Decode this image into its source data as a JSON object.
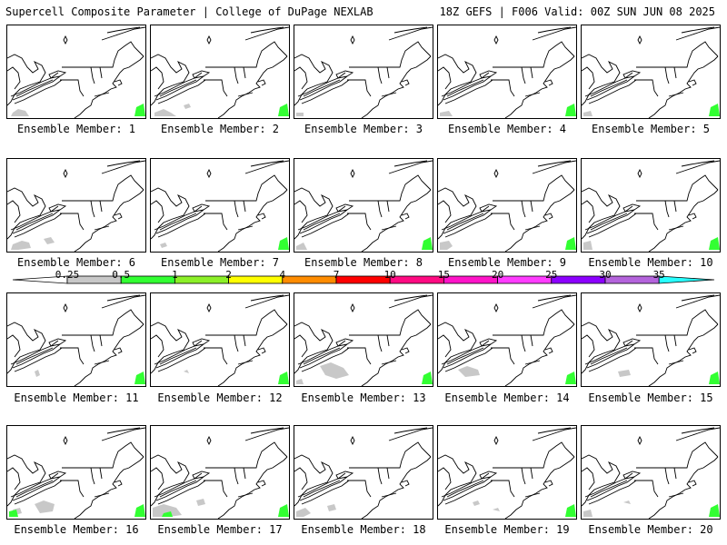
{
  "header": {
    "left_title": "Supercell Composite Parameter | College of DuPage NEXLAB",
    "right_title": "18Z GEFS | F006 Valid: 00Z SUN JUN 08 2025"
  },
  "legend": {
    "ticks": [
      "0.25",
      "0.5",
      "1",
      "2",
      "4",
      "7",
      "10",
      "15",
      "20",
      "25",
      "30",
      "35"
    ],
    "colors": [
      "#c8c8c8",
      "#32ff32",
      "#8cf028",
      "#ffff00",
      "#ff8c00",
      "#ff0000",
      "#ff0a82",
      "#ff14c8",
      "#ff3cff",
      "#8c00ff",
      "#b464dc",
      "#28ffff"
    ]
  },
  "members": [
    {
      "label": "Ensemble Member: 1"
    },
    {
      "label": "Ensemble Member: 2"
    },
    {
      "label": "Ensemble Member: 3"
    },
    {
      "label": "Ensemble Member: 4"
    },
    {
      "label": "Ensemble Member: 5"
    },
    {
      "label": "Ensemble Member: 6"
    },
    {
      "label": "Ensemble Member: 7"
    },
    {
      "label": "Ensemble Member: 8"
    },
    {
      "label": "Ensemble Member: 9"
    },
    {
      "label": "Ensemble Member: 10"
    },
    {
      "label": "Ensemble Member: 11"
    },
    {
      "label": "Ensemble Member: 12"
    },
    {
      "label": "Ensemble Member: 13"
    },
    {
      "label": "Ensemble Member: 14"
    },
    {
      "label": "Ensemble Member: 15"
    },
    {
      "label": "Ensemble Member: 16"
    },
    {
      "label": "Ensemble Member: 17"
    },
    {
      "label": "Ensemble Member: 18"
    },
    {
      "label": "Ensemble Member: 19"
    },
    {
      "label": "Ensemble Member: 20"
    }
  ]
}
